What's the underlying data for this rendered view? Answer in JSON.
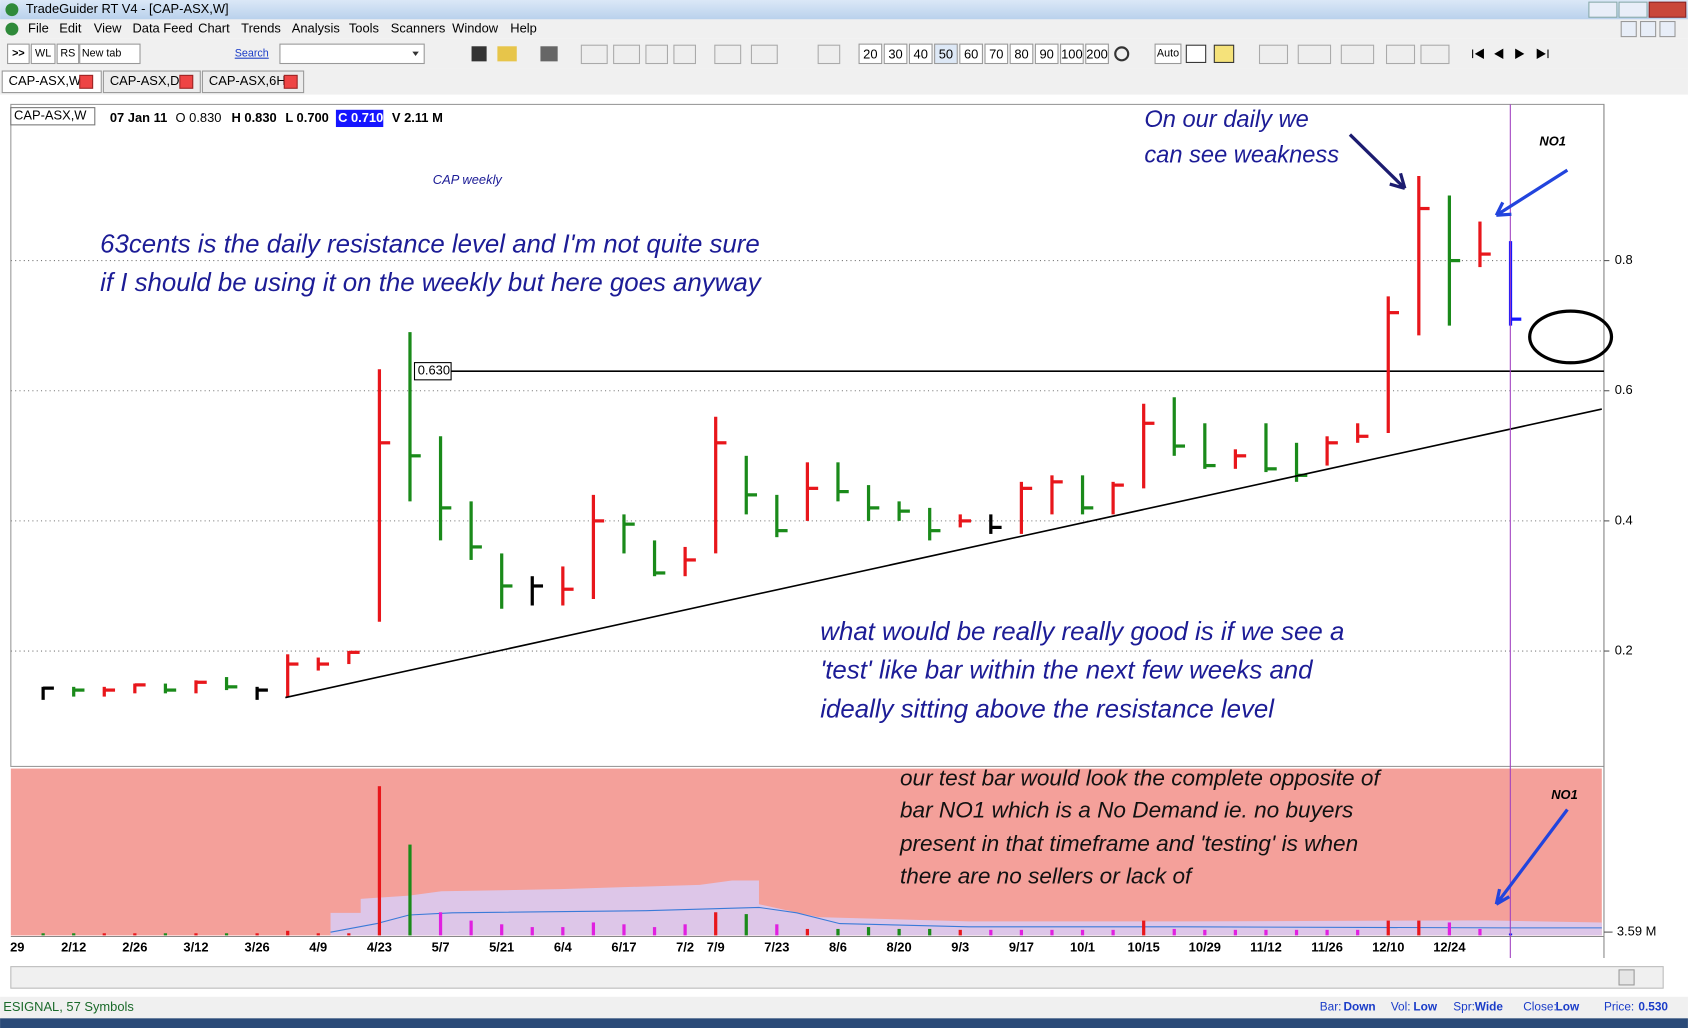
{
  "window": {
    "title": "TradeGuider RT V4  - [CAP-ASX,W]"
  },
  "menu": [
    "File",
    "Edit",
    "View",
    "Data Feed",
    "Chart",
    "Trends",
    "Analysis",
    "Tools",
    "Scanners",
    "Window",
    "Help"
  ],
  "toolbar": {
    "buttons": [
      ">>",
      "WL",
      "RS",
      "New tab"
    ],
    "search": "Search",
    "periods": [
      "20",
      "30",
      "40",
      "50",
      "60",
      "70",
      "80",
      "90",
      "100",
      "200"
    ],
    "auto": "Auto"
  },
  "tabs": [
    "CAP-ASX,W",
    "CAP-ASX,D",
    "CAP-ASX,6H"
  ],
  "header": {
    "symbol": "CAP-ASX,W",
    "date": "07 Jan 11",
    "open": "O 0.830",
    "high": "H 0.830",
    "low": "L 0.700",
    "close": "C 0.710",
    "volume": "V 2.11 M"
  },
  "chart": {
    "type": "ohlc",
    "title": "CAP weekly",
    "annotations": [
      "63cents is the daily resistance level and I'm not  quite sure",
      "if I should be using it on the weekly but here goes anyway",
      "On our daily we",
      "can see weakness",
      "NO1",
      "what would be really really good is if we see a",
      "'test' like bar within the next few weeks and",
      "ideally sitting above the resistance level"
    ],
    "volume_annotations": [
      "our test bar would look the complete opposite of",
      "bar NO1 which is a No Demand ie. no buyers",
      "present in that timeframe and 'testing' is when",
      "there are no sellers or lack of",
      "NO1"
    ],
    "ylim": [
      0.026,
      1.04
    ],
    "yticks": [
      0.2,
      0.4,
      0.6,
      0.8
    ],
    "resistance": {
      "value": 0.63,
      "label": "0.630"
    },
    "volume_ylim": [
      0,
      180
    ],
    "volume_ticks": [
      {
        "value": 3.59,
        "label": "3.59 M"
      }
    ],
    "grid": true,
    "bars": [
      {
        "label": "29",
        "high": null,
        "low": null,
        "close": null,
        "volume": null
      },
      {
        "label": null,
        "high": 0.145,
        "low": 0.125,
        "close": 0.143,
        "color": "#000000",
        "volume": 2.3,
        "vcolor": "#1a8a1a"
      },
      {
        "label": "2/12",
        "high": 0.145,
        "low": 0.13,
        "close": 0.14,
        "color": "#1a8a1a",
        "volume": 2.3,
        "vcolor": "#1a8a1a"
      },
      {
        "label": null,
        "high": 0.145,
        "low": 0.13,
        "close": 0.14,
        "color": "#e8161b",
        "volume": 2.3,
        "vcolor": "#e8161b"
      },
      {
        "label": "2/26",
        "high": 0.15,
        "low": 0.135,
        "close": 0.148,
        "color": "#e8161b",
        "volume": 2.3,
        "vcolor": "#e8161b"
      },
      {
        "label": null,
        "high": 0.15,
        "low": 0.135,
        "close": 0.14,
        "color": "#1a8a1a",
        "volume": 2.3,
        "vcolor": "#1a8a1a"
      },
      {
        "label": "3/12",
        "high": 0.155,
        "low": 0.135,
        "close": 0.152,
        "color": "#e8161b",
        "volume": 2.3,
        "vcolor": "#e8161b"
      },
      {
        "label": null,
        "high": 0.16,
        "low": 0.14,
        "close": 0.145,
        "color": "#1a8a1a",
        "volume": 2.3,
        "vcolor": "#1a8a1a"
      },
      {
        "label": "3/26",
        "high": 0.145,
        "low": 0.125,
        "close": 0.14,
        "color": "#000000",
        "volume": 2.3,
        "vcolor": "#e8161b"
      },
      {
        "label": null,
        "high": 0.195,
        "low": 0.13,
        "close": 0.18,
        "color": "#e8161b",
        "volume": 5,
        "vcolor": "#e8161b"
      },
      {
        "label": "4/9",
        "high": 0.19,
        "low": 0.17,
        "close": 0.18,
        "color": "#e8161b",
        "volume": 2.3,
        "vcolor": "#e8161b"
      },
      {
        "label": null,
        "high": 0.2,
        "low": 0.18,
        "close": 0.198,
        "color": "#e8161b",
        "volume": 2.3,
        "vcolor": "#e8161b"
      },
      {
        "label": "4/23",
        "high": 0.633,
        "low": 0.245,
        "close": 0.52,
        "color": "#e8161b",
        "volume": 161,
        "vcolor": "#e8161b"
      },
      {
        "label": null,
        "high": 0.69,
        "low": 0.43,
        "close": 0.5,
        "color": "#1a8a1a",
        "volume": 98,
        "vcolor": "#1a8a1a"
      },
      {
        "label": "5/7",
        "high": 0.53,
        "low": 0.37,
        "close": 0.42,
        "color": "#1a8a1a",
        "volume": 25,
        "vcolor": "#e020e0"
      },
      {
        "label": null,
        "high": 0.43,
        "low": 0.34,
        "close": 0.36,
        "color": "#1a8a1a",
        "volume": 16,
        "vcolor": "#e020e0"
      },
      {
        "label": "5/21",
        "high": 0.35,
        "low": 0.265,
        "close": 0.3,
        "color": "#1a8a1a",
        "volume": 12,
        "vcolor": "#e020e0"
      },
      {
        "label": null,
        "high": 0.315,
        "low": 0.27,
        "close": 0.3,
        "color": "#000000",
        "volume": 9,
        "vcolor": "#e020e0"
      },
      {
        "label": "6/4",
        "high": 0.33,
        "low": 0.27,
        "close": 0.295,
        "color": "#e8161b",
        "volume": 9,
        "vcolor": "#e020e0"
      },
      {
        "label": null,
        "high": 0.44,
        "low": 0.28,
        "close": 0.4,
        "color": "#e8161b",
        "volume": 14,
        "vcolor": "#e020e0"
      },
      {
        "label": "6/17",
        "high": 0.41,
        "low": 0.35,
        "close": 0.395,
        "color": "#1a8a1a",
        "volume": 12,
        "vcolor": "#e020e0"
      },
      {
        "label": null,
        "high": 0.37,
        "low": 0.315,
        "close": 0.32,
        "color": "#1a8a1a",
        "volume": 9,
        "vcolor": "#e020e0"
      },
      {
        "label": "7/2",
        "high": 0.36,
        "low": 0.315,
        "close": 0.34,
        "color": "#e8161b",
        "volume": 12,
        "vcolor": "#e020e0"
      },
      {
        "label": "7/9",
        "high": 0.56,
        "low": 0.35,
        "close": 0.52,
        "color": "#e8161b",
        "volume": 25,
        "vcolor": "#e8161b"
      },
      {
        "label": null,
        "high": 0.5,
        "low": 0.41,
        "close": 0.44,
        "color": "#1a8a1a",
        "volume": 23,
        "vcolor": "#1a8a1a"
      },
      {
        "label": "7/23",
        "high": 0.44,
        "low": 0.375,
        "close": 0.385,
        "color": "#1a8a1a",
        "volume": 12,
        "vcolor": "#e020e0"
      },
      {
        "label": null,
        "high": 0.49,
        "low": 0.4,
        "close": 0.45,
        "color": "#e8161b",
        "volume": 7,
        "vcolor": "#e8161b"
      },
      {
        "label": "8/6",
        "high": 0.49,
        "low": 0.43,
        "close": 0.445,
        "color": "#1a8a1a",
        "volume": 7,
        "vcolor": "#1a8a1a"
      },
      {
        "label": null,
        "high": 0.455,
        "low": 0.4,
        "close": 0.42,
        "color": "#1a8a1a",
        "volume": 9,
        "vcolor": "#1a8a1a"
      },
      {
        "label": "8/20",
        "high": 0.43,
        "low": 0.4,
        "close": 0.415,
        "color": "#1a8a1a",
        "volume": 7,
        "vcolor": "#1a8a1a"
      },
      {
        "label": null,
        "high": 0.42,
        "low": 0.37,
        "close": 0.385,
        "color": "#1a8a1a",
        "volume": 7,
        "vcolor": "#1a8a1a"
      },
      {
        "label": "9/3",
        "high": 0.41,
        "low": 0.39,
        "close": 0.4,
        "color": "#e8161b",
        "volume": 6,
        "vcolor": "#e8161b"
      },
      {
        "label": null,
        "high": 0.41,
        "low": 0.38,
        "close": 0.39,
        "color": "#000000",
        "volume": 6,
        "vcolor": "#e020e0"
      },
      {
        "label": "9/17",
        "high": 0.46,
        "low": 0.38,
        "close": 0.45,
        "color": "#e8161b",
        "volume": 6,
        "vcolor": "#e020e0"
      },
      {
        "label": null,
        "high": 0.47,
        "low": 0.41,
        "close": 0.46,
        "color": "#e8161b",
        "volume": 6,
        "vcolor": "#e020e0"
      },
      {
        "label": "10/1",
        "high": 0.47,
        "low": 0.41,
        "close": 0.42,
        "color": "#1a8a1a",
        "volume": 6,
        "vcolor": "#e020e0"
      },
      {
        "label": null,
        "high": 0.46,
        "low": 0.41,
        "close": 0.455,
        "color": "#e8161b",
        "volume": 6,
        "vcolor": "#e020e0"
      },
      {
        "label": "10/15",
        "high": 0.58,
        "low": 0.45,
        "close": 0.55,
        "color": "#e8161b",
        "volume": 16,
        "vcolor": "#e8161b"
      },
      {
        "label": null,
        "high": 0.59,
        "low": 0.5,
        "close": 0.515,
        "color": "#1a8a1a",
        "volume": 7,
        "vcolor": "#e020e0"
      },
      {
        "label": "10/29",
        "high": 0.55,
        "low": 0.48,
        "close": 0.485,
        "color": "#1a8a1a",
        "volume": 6,
        "vcolor": "#e020e0"
      },
      {
        "label": null,
        "high": 0.51,
        "low": 0.48,
        "close": 0.5,
        "color": "#e8161b",
        "volume": 6,
        "vcolor": "#e020e0"
      },
      {
        "label": "11/12",
        "high": 0.55,
        "low": 0.475,
        "close": 0.48,
        "color": "#1a8a1a",
        "volume": 6,
        "vcolor": "#e020e0"
      },
      {
        "label": null,
        "high": 0.52,
        "low": 0.46,
        "close": 0.47,
        "color": "#1a8a1a",
        "volume": 6,
        "vcolor": "#e020e0"
      },
      {
        "label": "11/26",
        "high": 0.53,
        "low": 0.485,
        "close": 0.52,
        "color": "#e8161b",
        "volume": 6,
        "vcolor": "#e020e0"
      },
      {
        "label": null,
        "high": 0.55,
        "low": 0.52,
        "close": 0.53,
        "color": "#e8161b",
        "volume": 6,
        "vcolor": "#e020e0"
      },
      {
        "label": "12/10",
        "high": 0.745,
        "low": 0.535,
        "close": 0.72,
        "color": "#e8161b",
        "volume": 16,
        "vcolor": "#e8161b"
      },
      {
        "label": null,
        "high": 0.93,
        "low": 0.685,
        "close": 0.88,
        "color": "#e8161b",
        "volume": 16,
        "vcolor": "#e8161b"
      },
      {
        "label": "12/24",
        "high": 0.9,
        "low": 0.7,
        "close": 0.8,
        "color": "#1a8a1a",
        "volume": 14,
        "vcolor": "#e020e0"
      },
      {
        "label": null,
        "high": 0.86,
        "low": 0.79,
        "close": 0.81,
        "color": "#e8161b",
        "volume": 7,
        "vcolor": "#e020e0"
      },
      {
        "label": null,
        "high": 0.83,
        "low": 0.7,
        "close": 0.71,
        "color": "#1515ff",
        "volume": 2.11,
        "vcolor": "#1515ff"
      }
    ]
  },
  "status": {
    "feed": "ESIGNAL, 57 Symbols",
    "bar_label": "Bar:",
    "bar": "Down",
    "vol_label": "Vol:",
    "vol": "Low",
    "spr_label": "Spr:",
    "spr": "Wide",
    "close_label": "Close:",
    "close": "Low",
    "price_label": "Price:",
    "price": "0.530"
  }
}
